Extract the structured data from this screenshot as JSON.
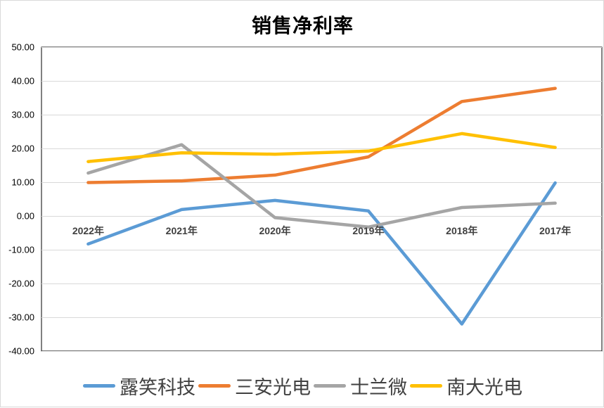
{
  "chart_data": {
    "type": "line",
    "title": "销售净利率",
    "xlabel": "",
    "ylabel": "",
    "categories": [
      "2022年",
      "2021年",
      "2020年",
      "2019年",
      "2018年",
      "2017年"
    ],
    "ylim": [
      -40,
      50
    ],
    "ytick_step": 10,
    "ytick_labels": [
      "50.00",
      "40.00",
      "30.00",
      "20.00",
      "10.00",
      "0.00",
      "-10.00",
      "-20.00",
      "-30.00",
      "-40.00"
    ],
    "grid": true,
    "legend_position": "bottom",
    "series": [
      {
        "name": "露笑科技",
        "color": "#5b9bd5",
        "values": [
          -8.3,
          1.9,
          4.6,
          1.5,
          -32.0,
          9.8
        ]
      },
      {
        "name": "三安光电",
        "color": "#ed7d31",
        "values": [
          9.9,
          10.4,
          12.1,
          17.5,
          33.9,
          37.8
        ]
      },
      {
        "name": "士兰微",
        "color": "#a5a5a5",
        "values": [
          12.7,
          21.1,
          -0.5,
          -3.3,
          2.5,
          3.8
        ]
      },
      {
        "name": "南大光电",
        "color": "#ffc000",
        "values": [
          16.1,
          18.7,
          18.3,
          19.2,
          24.4,
          20.3
        ]
      }
    ]
  }
}
